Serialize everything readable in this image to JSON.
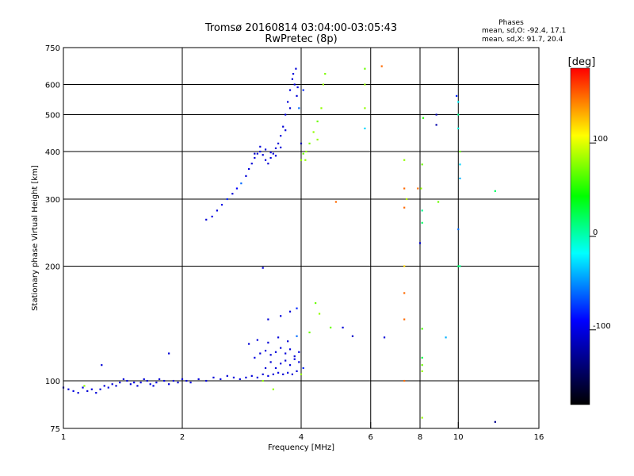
{
  "chart_data": {
    "type": "scatter",
    "title": "Tromsø 20160814 03:04:00-03:05:43",
    "subtitle": "RwPretec (8p)",
    "phases": {
      "heading": "Phases",
      "line_o": "mean, sd,O: -92.4, 17.1",
      "line_x": "mean, sd,X:  91.7, 20.4"
    },
    "xlabel": "Frequency [MHz]",
    "ylabel": "Stationary phase Virtual Height [km]",
    "x_scale": "log",
    "y_scale": "log",
    "xlim": [
      1,
      16
    ],
    "ylim": [
      75,
      750
    ],
    "x_ticks": [
      1,
      2,
      4,
      6,
      8,
      10,
      16
    ],
    "y_ticks": [
      75,
      100,
      200,
      300,
      400,
      500,
      600,
      750
    ],
    "x_gridlines": [
      2,
      4,
      6,
      8,
      10
    ],
    "y_gridlines": [
      100,
      200,
      300,
      400,
      500,
      600
    ],
    "colorbar": {
      "label": "[deg]",
      "range": [
        -180,
        180
      ],
      "ticks": [
        100,
        0,
        -100
      ],
      "colors": [
        "#ff0000",
        "#ffff00",
        "#00ff00",
        "#00ffff",
        "#0000ff",
        "#000000"
      ]
    },
    "series": [
      {
        "points": [
          [
            1.0,
            96,
            -105
          ],
          [
            1.03,
            95,
            -105
          ],
          [
            1.06,
            94,
            -100
          ],
          [
            1.09,
            93,
            -105
          ],
          [
            1.12,
            96,
            -100
          ],
          [
            1.15,
            94,
            -105
          ],
          [
            1.18,
            95,
            -102
          ],
          [
            1.21,
            93,
            -104
          ],
          [
            1.24,
            95,
            -101
          ],
          [
            1.27,
            97,
            -105
          ],
          [
            1.3,
            96,
            -100
          ],
          [
            1.33,
            98,
            -104
          ],
          [
            1.36,
            97,
            -106
          ],
          [
            1.39,
            99,
            -102
          ],
          [
            1.42,
            101,
            -105
          ],
          [
            1.45,
            100,
            -101
          ],
          [
            1.48,
            98,
            -104
          ],
          [
            1.51,
            99,
            -100
          ],
          [
            1.54,
            97,
            -106
          ],
          [
            1.57,
            99,
            -102
          ],
          [
            1.6,
            101,
            -105
          ],
          [
            1.63,
            100,
            -104
          ],
          [
            1.66,
            98,
            -101
          ],
          [
            1.69,
            97,
            -104
          ],
          [
            1.72,
            99,
            -102
          ],
          [
            1.75,
            101,
            -106
          ],
          [
            1.8,
            100,
            -100
          ],
          [
            1.85,
            98,
            -104
          ],
          [
            1.9,
            100,
            -102
          ],
          [
            1.95,
            99,
            -105
          ],
          [
            2.0,
            101,
            -103
          ],
          [
            2.05,
            100,
            -104
          ],
          [
            2.1,
            99,
            -101
          ],
          [
            2.2,
            101,
            -105
          ],
          [
            2.3,
            100,
            -102
          ],
          [
            2.4,
            102,
            -104
          ],
          [
            2.5,
            101,
            -101
          ],
          [
            2.6,
            103,
            -104
          ],
          [
            2.7,
            102,
            -102
          ],
          [
            2.8,
            101,
            -105
          ],
          [
            2.9,
            102,
            -103
          ],
          [
            3.0,
            103,
            -104
          ],
          [
            3.1,
            102,
            -101
          ],
          [
            3.2,
            104,
            -104
          ],
          [
            3.3,
            103,
            -100
          ],
          [
            3.4,
            104,
            -103
          ],
          [
            3.5,
            105,
            -101
          ],
          [
            3.6,
            104,
            -104
          ],
          [
            3.7,
            105,
            -102
          ],
          [
            3.8,
            104,
            -105
          ],
          [
            3.9,
            106,
            -103
          ],
          [
            3.25,
            108,
            -104
          ],
          [
            3.35,
            112,
            -106
          ],
          [
            3.45,
            108,
            -102
          ],
          [
            3.55,
            111,
            -104
          ],
          [
            3.65,
            113,
            -105
          ],
          [
            3.75,
            110,
            -103
          ],
          [
            3.85,
            114,
            -101
          ],
          [
            3.95,
            112,
            -104
          ],
          [
            3.05,
            115,
            -100
          ],
          [
            3.15,
            118,
            -104
          ],
          [
            3.25,
            120,
            -102
          ],
          [
            3.35,
            117,
            -105
          ],
          [
            3.45,
            119,
            -103
          ],
          [
            3.55,
            122,
            -101
          ],
          [
            3.65,
            118,
            -104
          ],
          [
            3.75,
            121,
            -102
          ],
          [
            3.85,
            116,
            -105
          ],
          [
            3.95,
            119,
            -103
          ],
          [
            4.05,
            108,
            -80
          ],
          [
            4.0,
            104,
            80
          ],
          [
            2.95,
            125,
            -104
          ],
          [
            3.1,
            128,
            -102
          ],
          [
            3.3,
            126,
            -105
          ],
          [
            3.5,
            130,
            -103
          ],
          [
            3.7,
            127,
            -104
          ],
          [
            3.9,
            131,
            -60
          ],
          [
            4.2,
            134,
            70
          ],
          [
            4.45,
            150,
            80
          ],
          [
            3.3,
            145,
            -104
          ],
          [
            3.55,
            148,
            -102
          ],
          [
            3.75,
            152,
            -104
          ],
          [
            3.9,
            155,
            -80
          ],
          [
            4.35,
            160,
            70
          ],
          [
            1.25,
            110,
            -104
          ],
          [
            1.85,
            118,
            -104
          ],
          [
            5.1,
            138,
            -104
          ],
          [
            5.4,
            131,
            -110
          ],
          [
            4.75,
            138,
            70
          ],
          [
            3.2,
            198,
            -104
          ],
          [
            6.5,
            130,
            -104
          ]
        ]
      },
      {
        "points": [
          [
            2.3,
            265,
            -105
          ],
          [
            2.38,
            270,
            -100
          ],
          [
            2.45,
            280,
            -102
          ],
          [
            2.52,
            290,
            -98
          ],
          [
            2.6,
            300,
            -80
          ],
          [
            2.68,
            310,
            -104
          ],
          [
            2.75,
            320,
            -90
          ],
          [
            2.82,
            330,
            -60
          ],
          [
            2.9,
            345,
            -104
          ],
          [
            2.95,
            360,
            -102
          ],
          [
            3.0,
            372,
            -105
          ],
          [
            3.05,
            385,
            -103
          ],
          [
            3.1,
            395,
            -104
          ],
          [
            3.15,
            400,
            -102
          ],
          [
            3.2,
            392,
            -105
          ],
          [
            3.25,
            380,
            -101
          ],
          [
            3.3,
            372,
            -104
          ],
          [
            3.35,
            385,
            -102
          ],
          [
            3.4,
            395,
            -105
          ],
          [
            3.45,
            408,
            -103
          ],
          [
            3.5,
            420,
            -104
          ],
          [
            3.55,
            440,
            -102
          ],
          [
            3.6,
            465,
            -105
          ],
          [
            3.65,
            500,
            -103
          ],
          [
            3.7,
            540,
            -104
          ],
          [
            3.75,
            580,
            -102
          ],
          [
            3.8,
            620,
            -105
          ],
          [
            3.85,
            600,
            -103
          ],
          [
            3.9,
            560,
            -104
          ],
          [
            3.95,
            520,
            -60
          ],
          [
            3.05,
            395,
            -110
          ],
          [
            3.15,
            412,
            -104
          ],
          [
            3.25,
            405,
            -102
          ],
          [
            3.35,
            398,
            -105
          ],
          [
            3.45,
            390,
            -103
          ],
          [
            3.55,
            410,
            -104
          ],
          [
            3.65,
            455,
            -102
          ],
          [
            3.75,
            520,
            -105
          ],
          [
            3.82,
            640,
            -103
          ],
          [
            3.88,
            660,
            -104
          ],
          [
            3.92,
            590,
            -102
          ],
          [
            4.0,
            380,
            80
          ],
          [
            4.05,
            395,
            70
          ],
          [
            4.12,
            400,
            80
          ],
          [
            4.2,
            420,
            75
          ],
          [
            4.3,
            450,
            80
          ],
          [
            4.4,
            480,
            70
          ],
          [
            4.5,
            520,
            80
          ],
          [
            4.55,
            600,
            80
          ],
          [
            4.6,
            640,
            75
          ],
          [
            4.4,
            430,
            80
          ],
          [
            4.1,
            380,
            80
          ],
          [
            4.0,
            420,
            -120
          ],
          [
            4.05,
            580,
            -80
          ],
          [
            5.8,
            600,
            80
          ],
          [
            5.8,
            520,
            80
          ],
          [
            5.8,
            460,
            -30
          ],
          [
            5.8,
            660,
            70
          ],
          [
            6.4,
            670,
            150
          ],
          [
            7.3,
            380,
            80
          ],
          [
            7.3,
            320,
            150
          ],
          [
            7.3,
            285,
            150
          ],
          [
            7.9,
            320,
            150
          ],
          [
            8.05,
            320,
            80
          ],
          [
            8.1,
            280,
            10
          ],
          [
            8.1,
            260,
            20
          ],
          [
            7.4,
            300,
            90
          ],
          [
            8.1,
            370,
            70
          ],
          [
            8.15,
            490,
            50
          ],
          [
            8.8,
            500,
            -120
          ],
          [
            8.8,
            470,
            -120
          ],
          [
            9.9,
            560,
            -80
          ],
          [
            10.0,
            540,
            -20
          ],
          [
            10.0,
            500,
            10
          ],
          [
            10.0,
            460,
            -10
          ],
          [
            10.1,
            400,
            70
          ],
          [
            10.1,
            370,
            -30
          ],
          [
            10.1,
            340,
            -40
          ],
          [
            10.0,
            250,
            -60
          ],
          [
            8.0,
            230,
            -104
          ],
          [
            4.9,
            295,
            150
          ],
          [
            12.4,
            315,
            20
          ],
          [
            8.9,
            295,
            70
          ]
        ]
      },
      {
        "points": [
          [
            7.3,
            200,
            120
          ],
          [
            7.3,
            170,
            150
          ],
          [
            7.3,
            145,
            150
          ],
          [
            7.3,
            100,
            150
          ],
          [
            8.1,
            137,
            60
          ],
          [
            8.1,
            115,
            30
          ],
          [
            8.1,
            110,
            70
          ],
          [
            8.1,
            106,
            80
          ],
          [
            8.1,
            80,
            80
          ],
          [
            9.3,
            130,
            -40
          ],
          [
            10.0,
            200,
            20
          ],
          [
            10.1,
            200,
            10
          ],
          [
            3.2,
            100,
            80
          ],
          [
            3.4,
            95,
            80
          ],
          [
            1.13,
            97,
            80
          ],
          [
            12.4,
            78,
            -130
          ]
        ]
      }
    ]
  }
}
